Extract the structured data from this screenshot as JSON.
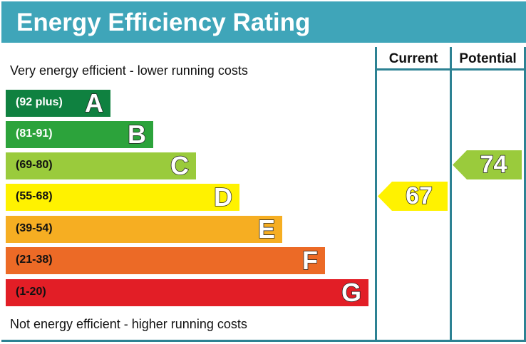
{
  "title": "Energy Efficiency Rating",
  "chart_data": {
    "type": "bar",
    "columns": [
      "Current",
      "Potential"
    ],
    "top_note": "Very energy efficient - lower running costs",
    "bottom_note": "Not energy efficient - higher running costs",
    "bands": [
      {
        "letter": "A",
        "range": "(92 plus)",
        "color": "#0f8140",
        "text_color": "#ffffff"
      },
      {
        "letter": "B",
        "range": "(81-91)",
        "color": "#2ca33b",
        "text_color": "#ffffff"
      },
      {
        "letter": "C",
        "range": "(69-80)",
        "color": "#9acb3c",
        "text_color": "#111111"
      },
      {
        "letter": "D",
        "range": "(55-68)",
        "color": "#fff200",
        "text_color": "#111111"
      },
      {
        "letter": "E",
        "range": "(39-54)",
        "color": "#f6ae22",
        "text_color": "#111111"
      },
      {
        "letter": "F",
        "range": "(21-38)",
        "color": "#ec6a26",
        "text_color": "#111111"
      },
      {
        "letter": "G",
        "range": "(1-20)",
        "color": "#e21e26",
        "text_color": "#111111"
      }
    ],
    "current": {
      "value": "67",
      "band": "D",
      "color": "#fff200"
    },
    "potential": {
      "value": "74",
      "band": "C",
      "color": "#9acb3c"
    }
  }
}
